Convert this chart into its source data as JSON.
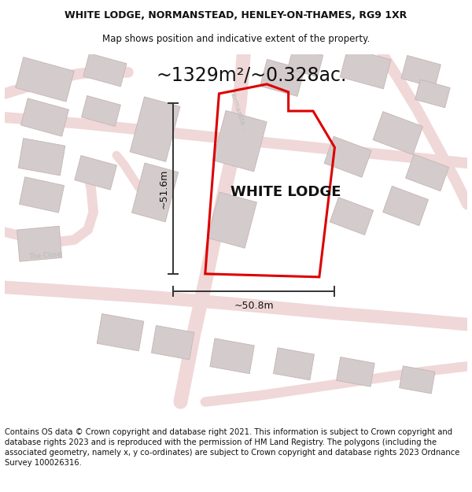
{
  "title_line1": "WHITE LODGE, NORMANSTEAD, HENLEY-ON-THAMES, RG9 1XR",
  "title_line2": "Map shows position and indicative extent of the property.",
  "area_label": "~1329m²/~0.328ac.",
  "property_label": "WHITE LODGE",
  "dim_width": "~50.8m",
  "dim_height": "~51.6m",
  "footer_text": "Contains OS data © Crown copyright and database right 2021. This information is subject to Crown copyright and database rights 2023 and is reproduced with the permission of HM Land Registry. The polygons (including the associated geometry, namely x, y co-ordinates) are subject to Crown copyright and database rights 2023 Ordnance Survey 100026316.",
  "map_bg": "#f7f0f0",
  "property_outline_color": "#dd0000",
  "dim_line_color": "#333333",
  "road_fill_color": "#f0d8d8",
  "road_edge_color": "#e8b8b8",
  "building_face_color": "#d4cccc",
  "building_edge_color": "#c8b8b8",
  "title_fontsize": 9.0,
  "subtitle_fontsize": 8.5,
  "area_fontsize": 17,
  "property_label_fontsize": 13,
  "dim_fontsize": 9,
  "footer_fontsize": 7.2,
  "road_name_fontsize": 6.0
}
